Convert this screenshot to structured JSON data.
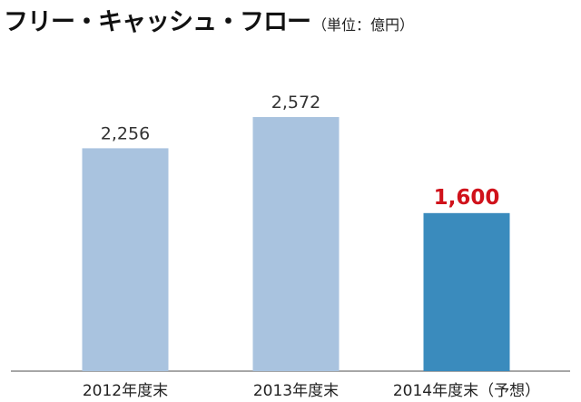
{
  "header": {
    "title": "フリー・キャッシュ・フロー",
    "unit": "（単位：億円）"
  },
  "chart_data": {
    "type": "bar",
    "title": "フリー・キャッシュ・フロー",
    "unit": "（単位：億円）",
    "categories": [
      "2012年度末",
      "2013年度末",
      "2014年度末（予想）"
    ],
    "values": [
      2256,
      2572,
      1600
    ],
    "value_labels": [
      "2,256",
      "2,572",
      "1,600"
    ],
    "highlight_index": 2,
    "ylim": [
      0,
      3270
    ],
    "colors": {
      "bar": "#a9c3df",
      "bar_highlight": "#3a8bbd",
      "label": "#333333",
      "label_highlight": "#d0121b",
      "baseline": "#888888"
    },
    "grid": false,
    "legend": "none"
  }
}
